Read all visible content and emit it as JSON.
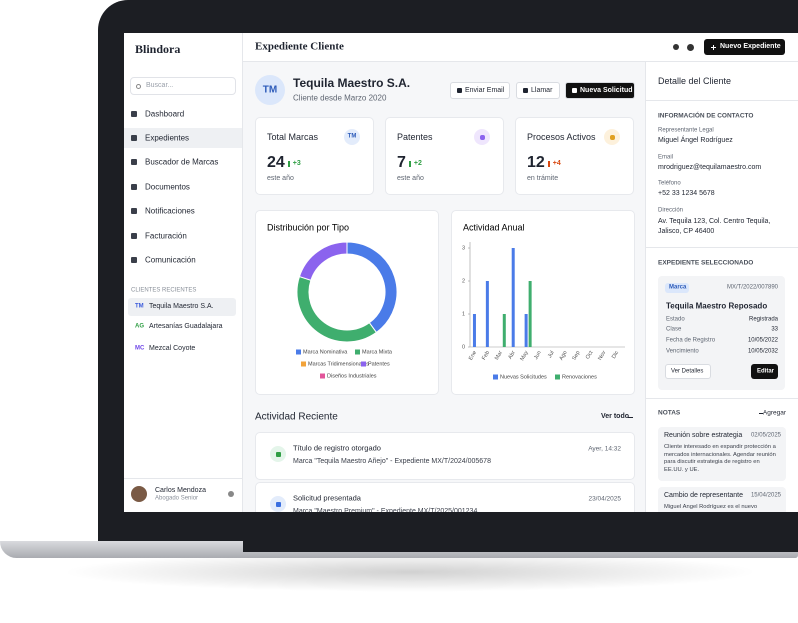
{
  "brand": "Blindora",
  "search_placeholder": "Buscar...",
  "nav": [
    "Dashboard",
    "Expedientes",
    "Buscador de Marcas",
    "Documentos",
    "Notificaciones",
    "Facturación",
    "Comunicación"
  ],
  "recent_title": "CLIENTES RECIENTES",
  "recent_clients": [
    {
      "initials": "TM",
      "name": "Tequila Maestro S.A."
    },
    {
      "initials": "AG",
      "name": "Artesanías Guadalajara"
    },
    {
      "initials": "MC",
      "name": "Mezcal Coyote"
    }
  ],
  "user": {
    "name": "Carlos Mendoza",
    "role": "Abogado Senior"
  },
  "header": {
    "title": "Expediente Cliente",
    "button": "Nuevo Expediente"
  },
  "client": {
    "initials": "TM",
    "name": "Tequila Maestro S.A.",
    "since": "Cliente desde Marzo 2020",
    "actions": [
      "Enviar Email",
      "Llamar",
      "Nueva Solicitud"
    ]
  },
  "stats": [
    {
      "label": "Total Marcas",
      "badge": "TM",
      "value": "24",
      "delta": "+3",
      "note": "este año"
    },
    {
      "label": "Patentes",
      "value": "7",
      "delta": "+2",
      "note": "este año"
    },
    {
      "label": "Procesos Activos",
      "value": "12",
      "delta": "+4",
      "note": "en trámite"
    }
  ],
  "chart_data": [
    {
      "type": "donut",
      "title": "Distribución por Tipo",
      "categories": [
        "Marca Nominativa",
        "Marca Mixta",
        "Marcas Tridimensionales",
        "Patentes",
        "Diseños Industriales"
      ],
      "values": [
        10,
        10,
        0,
        5,
        0
      ],
      "colors": [
        "#4a7be8",
        "#3fae6e",
        "#f2a33a",
        "#8b63ee",
        "#e2559a"
      ]
    },
    {
      "type": "bar",
      "title": "Actividad Anual",
      "categories": [
        "Ene",
        "Feb",
        "Mar",
        "Abr",
        "May",
        "Jun",
        "Jul",
        "Ago",
        "Sep",
        "Oct",
        "Nov",
        "Dic"
      ],
      "series": [
        {
          "name": "Nuevas Solicitudes",
          "color": "#4a7be8",
          "values": [
            1,
            2,
            0,
            3,
            1,
            0,
            0,
            0,
            0,
            0,
            0,
            0
          ]
        },
        {
          "name": "Renovaciones",
          "color": "#3fae6e",
          "values": [
            0,
            0,
            1,
            0,
            2,
            0,
            0,
            0,
            0,
            0,
            0,
            0
          ]
        }
      ],
      "ylim": [
        0,
        3
      ],
      "yticks": [
        0,
        1,
        2,
        3
      ]
    }
  ],
  "activity": {
    "title": "Actividad Reciente",
    "link": "Ver todo",
    "items": [
      {
        "title": "Título de registro otorgado",
        "time": "Ayer, 14:32",
        "detail": "Marca \"Tequila Maestro Añejo\" - Expediente MX/T/2024/005678"
      },
      {
        "title": "Solicitud presentada",
        "time": "23/04/2025",
        "detail": "Marca \"Maestro Premium\" - Expediente MX/T/2025/001234"
      }
    ]
  },
  "detail": {
    "title": "Detalle del Cliente",
    "contact_title": "INFORMACIÓN DE CONTACTO",
    "fields": [
      {
        "label": "Representante Legal",
        "value": "Miguel Ángel Rodríguez"
      },
      {
        "label": "Email",
        "value": "mrodriguez@tequilamaestro.com"
      },
      {
        "label": "Teléfono",
        "value": "+52 33 1234 5678"
      },
      {
        "label": "Dirección",
        "value": "Av. Tequila 123, Col. Centro Tequila, Jalisco, CP 46400"
      }
    ]
  },
  "selected": {
    "title": "EXPEDIENTE SELECCIONADO",
    "tag": "Marca",
    "number": "MX/T/2022/007890",
    "name": "Tequila Maestro Reposado",
    "rows": [
      [
        "Estado",
        "Registrada"
      ],
      [
        "Clase",
        "33"
      ],
      [
        "Fecha de Registro",
        "10/05/2022"
      ],
      [
        "Vencimiento",
        "10/05/2032"
      ]
    ],
    "buttons": [
      "Ver Detalles",
      "Editar"
    ]
  },
  "notes": {
    "title": "NOTAS",
    "add": "Agregar",
    "items": [
      {
        "title": "Reunión sobre estrategia",
        "date": "02/05/2025",
        "text": "Cliente interesado en expandir protección a mercados internacionales. Agendar reunión para discutir estrategia de registro en EE.UU. y UE."
      },
      {
        "title": "Cambio de representante",
        "date": "15/04/2025",
        "text": "Miguel Ángel Rodríguez es el nuevo representante legal."
      }
    ]
  }
}
